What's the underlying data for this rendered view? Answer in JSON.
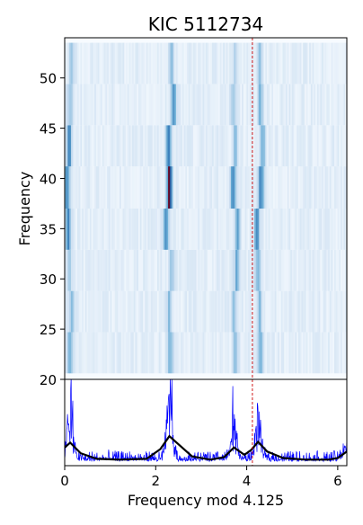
{
  "chart_data": [
    {
      "type": "heatmap",
      "title": "KIC 5112734",
      "ylabel": "Frequency",
      "xlabel": "",
      "xlim": [
        0,
        6.2
      ],
      "ylim": [
        20,
        54
      ],
      "yticks": [
        20,
        25,
        30,
        35,
        40,
        45,
        50
      ],
      "period": 4.125,
      "reference_line_x": 4.125,
      "reference_line_color": "#cc0000",
      "colormap": [
        "#f7fbff",
        "#c6dbef",
        "#6baed6",
        "#2166ac",
        "#67001f"
      ],
      "rows": [
        {
          "y0": 20.6,
          "y1": 24.7,
          "peaks": [
            [
              0.12,
              0.5
            ],
            [
              2.32,
              0.4
            ],
            [
              3.75,
              0.35
            ],
            [
              4.3,
              0.4
            ]
          ]
        },
        {
          "y0": 24.7,
          "y1": 28.8,
          "peaks": [
            [
              0.15,
              0.35
            ],
            [
              2.3,
              0.35
            ],
            [
              3.72,
              0.3
            ],
            [
              4.28,
              0.35
            ]
          ]
        },
        {
          "y0": 28.8,
          "y1": 32.9,
          "peaks": [
            [
              0.1,
              0.3
            ],
            [
              2.35,
              0.35
            ],
            [
              3.78,
              0.45
            ],
            [
              4.25,
              0.35
            ]
          ]
        },
        {
          "y0": 32.9,
          "y1": 37.0,
          "peaks": [
            [
              0.08,
              0.55
            ],
            [
              2.22,
              0.6
            ],
            [
              3.8,
              0.5
            ],
            [
              4.22,
              0.65
            ]
          ]
        },
        {
          "y0": 37.0,
          "y1": 41.2,
          "peaks": [
            [
              0.05,
              0.55
            ],
            [
              2.3,
              1.0
            ],
            [
              3.7,
              0.65
            ],
            [
              4.32,
              0.7
            ]
          ]
        },
        {
          "y0": 41.2,
          "y1": 45.3,
          "peaks": [
            [
              0.1,
              0.55
            ],
            [
              2.28,
              0.7
            ],
            [
              3.75,
              0.4
            ],
            [
              4.35,
              0.45
            ]
          ]
        },
        {
          "y0": 45.3,
          "y1": 49.4,
          "peaks": [
            [
              0.12,
              0.35
            ],
            [
              2.4,
              0.55
            ],
            [
              3.7,
              0.3
            ],
            [
              4.3,
              0.4
            ]
          ]
        },
        {
          "y0": 49.4,
          "y1": 53.5,
          "peaks": [
            [
              0.15,
              0.3
            ],
            [
              2.35,
              0.3
            ],
            [
              3.75,
              0.25
            ],
            [
              4.28,
              0.3
            ]
          ]
        }
      ]
    },
    {
      "type": "line",
      "title": "",
      "xlabel": "Frequency mod 4.125",
      "ylabel": "",
      "xlim": [
        0,
        6.2
      ],
      "xticks": [
        0,
        2,
        4,
        6
      ],
      "reference_line_x": 4.125,
      "series": [
        {
          "color": "#0000ff",
          "style": "raw spectrum (noisy)",
          "peaks": [
            [
              0.12,
              0.75
            ],
            [
              2.3,
              0.95
            ],
            [
              3.72,
              0.65
            ],
            [
              4.25,
              0.7
            ],
            [
              6.18,
              0.35
            ]
          ]
        },
        {
          "color": "#000000",
          "style": "smoothed",
          "x": [
            0,
            0.12,
            0.35,
            0.7,
            1.2,
            1.8,
            2.1,
            2.3,
            2.5,
            2.8,
            3.2,
            3.5,
            3.72,
            3.95,
            4.1,
            4.25,
            4.45,
            4.8,
            5.3,
            5.8,
            6.0,
            6.2
          ],
          "y": [
            0.18,
            0.24,
            0.11,
            0.04,
            0.03,
            0.04,
            0.16,
            0.32,
            0.22,
            0.07,
            0.03,
            0.06,
            0.18,
            0.09,
            0.15,
            0.25,
            0.13,
            0.05,
            0.03,
            0.03,
            0.05,
            0.13
          ]
        }
      ]
    }
  ]
}
